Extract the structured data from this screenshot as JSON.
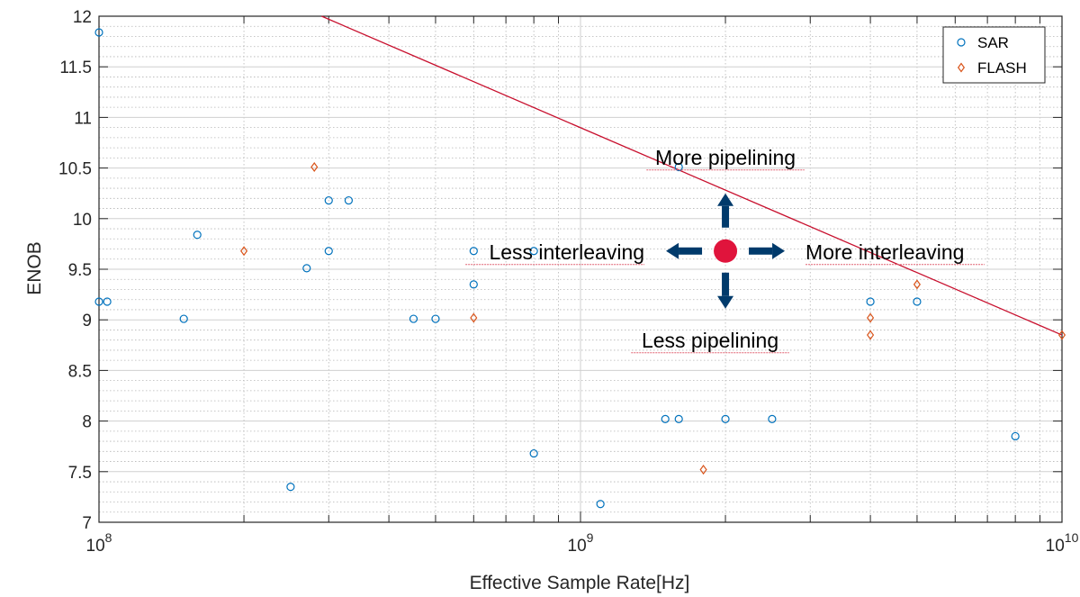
{
  "chart_data": {
    "type": "scatter",
    "xlabel": "Effective Sample Rate[Hz]",
    "ylabel": "ENOB",
    "x_scale": "log",
    "xlim": [
      100000000,
      10000000000
    ],
    "ylim": [
      7,
      12
    ],
    "x_ticks": [
      {
        "value": 100000000,
        "base": "10",
        "exp": "8"
      },
      {
        "value": 1000000000,
        "base": "10",
        "exp": "9"
      },
      {
        "value": 10000000000,
        "base": "10",
        "exp": "10"
      }
    ],
    "y_ticks": [
      {
        "value": 7,
        "label": "7"
      },
      {
        "value": 7.5,
        "label": "7.5"
      },
      {
        "value": 8,
        "label": "8"
      },
      {
        "value": 8.5,
        "label": "8.5"
      },
      {
        "value": 9,
        "label": "9"
      },
      {
        "value": 9.5,
        "label": "9.5"
      },
      {
        "value": 10,
        "label": "10"
      },
      {
        "value": 10.5,
        "label": "10.5"
      },
      {
        "value": 11,
        "label": "11"
      },
      {
        "value": 11.5,
        "label": "11.5"
      },
      {
        "value": 12,
        "label": "12"
      }
    ],
    "grid": true,
    "minor_grid": true,
    "legend_position": "top-right",
    "series": [
      {
        "name": "SAR",
        "marker": "circle",
        "color": "#0072BD",
        "points": [
          {
            "x": 100000000,
            "y": 11.84
          },
          {
            "x": 100000000,
            "y": 9.18
          },
          {
            "x": 104000000,
            "y": 9.18
          },
          {
            "x": 150000000,
            "y": 9.01
          },
          {
            "x": 160000000,
            "y": 9.84
          },
          {
            "x": 250000000,
            "y": 7.35
          },
          {
            "x": 270000000,
            "y": 9.51
          },
          {
            "x": 300000000,
            "y": 9.68
          },
          {
            "x": 300000000,
            "y": 10.18
          },
          {
            "x": 330000000,
            "y": 10.18
          },
          {
            "x": 450000000,
            "y": 9.01
          },
          {
            "x": 500000000,
            "y": 9.01
          },
          {
            "x": 600000000,
            "y": 9.35
          },
          {
            "x": 600000000,
            "y": 9.68
          },
          {
            "x": 800000000,
            "y": 7.68
          },
          {
            "x": 800000000,
            "y": 9.68
          },
          {
            "x": 1100000000,
            "y": 7.18
          },
          {
            "x": 1500000000,
            "y": 8.02
          },
          {
            "x": 1600000000,
            "y": 8.02
          },
          {
            "x": 1600000000,
            "y": 10.51
          },
          {
            "x": 2000000000,
            "y": 8.02
          },
          {
            "x": 2500000000,
            "y": 8.02
          },
          {
            "x": 4000000000,
            "y": 9.18
          },
          {
            "x": 5000000000,
            "y": 9.18
          },
          {
            "x": 8000000000,
            "y": 7.85
          }
        ]
      },
      {
        "name": "FLASH",
        "marker": "diamond",
        "color": "#D95319",
        "points": [
          {
            "x": 200000000,
            "y": 9.68
          },
          {
            "x": 280000000,
            "y": 10.51
          },
          {
            "x": 600000000,
            "y": 9.02
          },
          {
            "x": 1800000000,
            "y": 7.52
          },
          {
            "x": 4000000000,
            "y": 9.02
          },
          {
            "x": 4000000000,
            "y": 8.85
          },
          {
            "x": 5000000000,
            "y": 9.35
          },
          {
            "x": 10000000000,
            "y": 8.85
          }
        ]
      }
    ],
    "trend_line": {
      "color": "#C8102E",
      "points": [
        {
          "x": 290000000,
          "y": 12.0
        },
        {
          "x": 10000000000,
          "y": 8.85
        }
      ]
    },
    "annotations": {
      "center": {
        "x": 2000000000,
        "y": 9.68
      },
      "marker_color": "#E0143C",
      "arrow_color": "#003A6B",
      "up_label": "More pipelining",
      "down_label": "Less pipelining",
      "left_label": "Less interleaving",
      "right_label": "More interleaving"
    }
  }
}
